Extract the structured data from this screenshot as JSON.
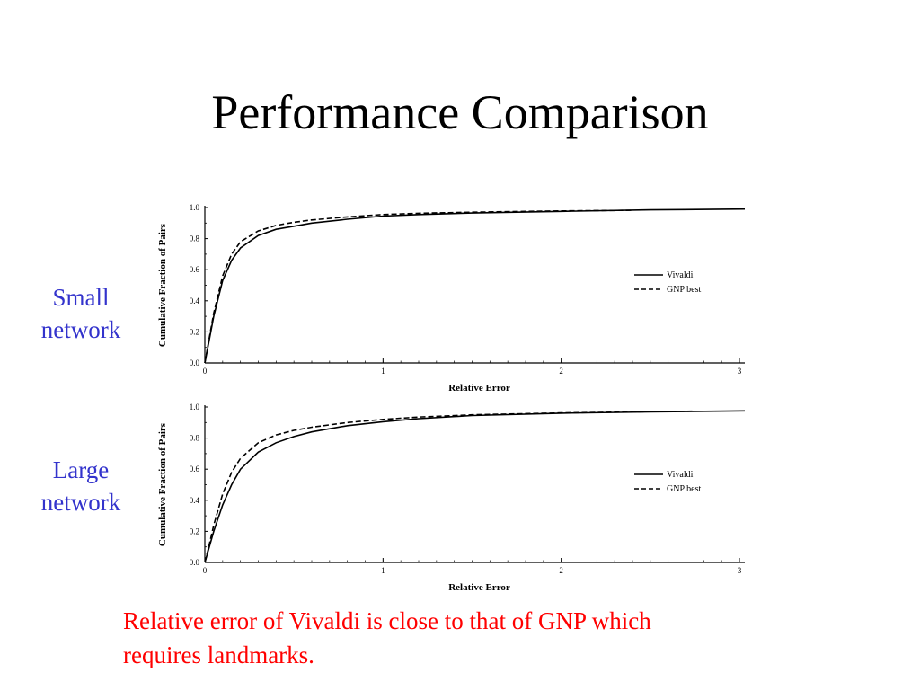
{
  "title": "Performance Comparison",
  "labels": {
    "small": [
      "Small",
      "network"
    ],
    "large": [
      "Large",
      "network"
    ]
  },
  "caption": {
    "lines": [
      "Relative error of Vivaldi is close to that of GNP which",
      "requires landmarks."
    ],
    "color": "#ff0000"
  },
  "label_color": "#3333cc",
  "chart_data": [
    {
      "type": "line",
      "panel": "Small network",
      "xlabel": "Relative Error",
      "ylabel": "Cumulative Fraction of Pairs",
      "xlim": [
        0,
        3
      ],
      "ylim": [
        0,
        1
      ],
      "xticks": [
        "0",
        "1",
        "2",
        "3"
      ],
      "yticks": [
        "0.0",
        "0.2",
        "0.4",
        "0.6",
        "0.8",
        "1.0"
      ],
      "legend_position": "right",
      "series": [
        {
          "name": "Vivaldi",
          "style": "solid",
          "x": [
            0,
            0.02,
            0.05,
            0.1,
            0.15,
            0.2,
            0.3,
            0.4,
            0.5,
            0.6,
            0.8,
            1.0,
            1.2,
            1.5,
            2.0,
            2.5,
            3.03
          ],
          "y": [
            0,
            0.12,
            0.3,
            0.53,
            0.66,
            0.74,
            0.82,
            0.86,
            0.88,
            0.9,
            0.925,
            0.945,
            0.955,
            0.965,
            0.975,
            0.985,
            0.99
          ]
        },
        {
          "name": "GNP best",
          "style": "dashed",
          "x": [
            0,
            0.02,
            0.05,
            0.1,
            0.15,
            0.2,
            0.3,
            0.4,
            0.5,
            0.6,
            0.8,
            1.0,
            1.2,
            1.5,
            2.0,
            2.4
          ],
          "y": [
            0,
            0.13,
            0.32,
            0.56,
            0.7,
            0.78,
            0.85,
            0.885,
            0.905,
            0.92,
            0.94,
            0.955,
            0.963,
            0.97,
            0.978,
            0.982
          ]
        }
      ]
    },
    {
      "type": "line",
      "panel": "Large network",
      "xlabel": "Relative Error",
      "ylabel": "Cumulative Fraction of Pairs",
      "xlim": [
        0,
        3
      ],
      "ylim": [
        0,
        1
      ],
      "xticks": [
        "0",
        "1",
        "2",
        "3"
      ],
      "yticks": [
        "0.0",
        "0.2",
        "0.4",
        "0.6",
        "0.8",
        "1.0"
      ],
      "legend_position": "right",
      "series": [
        {
          "name": "Vivaldi",
          "style": "solid",
          "x": [
            0,
            0.02,
            0.05,
            0.1,
            0.15,
            0.2,
            0.3,
            0.4,
            0.5,
            0.6,
            0.8,
            1.0,
            1.2,
            1.5,
            2.0,
            2.5,
            3.03
          ],
          "y": [
            0,
            0.08,
            0.2,
            0.37,
            0.5,
            0.6,
            0.71,
            0.77,
            0.81,
            0.84,
            0.88,
            0.905,
            0.925,
            0.945,
            0.96,
            0.968,
            0.975
          ]
        },
        {
          "name": "GNP best",
          "style": "dashed",
          "x": [
            0,
            0.02,
            0.05,
            0.1,
            0.15,
            0.2,
            0.3,
            0.4,
            0.5,
            0.6,
            0.8,
            1.0,
            1.2,
            1.5,
            2.0,
            2.5,
            2.75
          ],
          "y": [
            0,
            0.09,
            0.24,
            0.44,
            0.58,
            0.67,
            0.77,
            0.82,
            0.85,
            0.87,
            0.9,
            0.92,
            0.935,
            0.95,
            0.962,
            0.97,
            0.973
          ]
        }
      ]
    }
  ]
}
